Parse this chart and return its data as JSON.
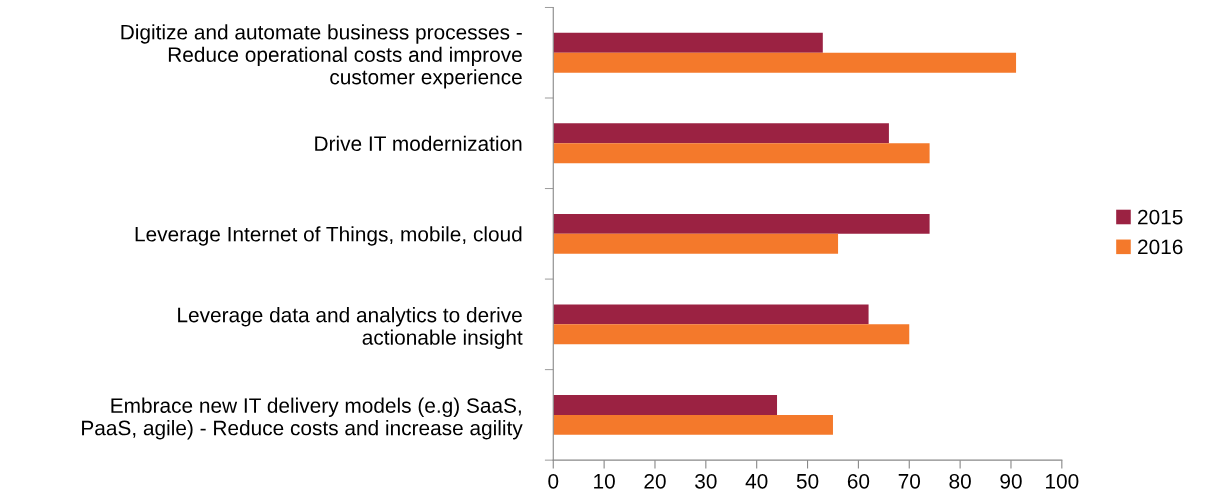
{
  "chart_data": {
    "type": "bar",
    "orientation": "horizontal",
    "categories": [
      "Digitize and automate business processes -\nReduce operational costs and improve\ncustomer experience",
      "Drive IT modernization",
      "Leverage Internet of Things, mobile, cloud",
      "Leverage data and analytics to derive\nactionable insight",
      "Embrace new IT delivery models (e.g) SaaS,\nPaaS, agile) - Reduce costs and increase agility"
    ],
    "series": [
      {
        "name": "2015",
        "color": "#9b2242",
        "values": [
          53,
          66,
          74,
          62,
          44
        ]
      },
      {
        "name": "2016",
        "color": "#f4792b",
        "values": [
          91,
          74,
          56,
          70,
          55
        ]
      }
    ],
    "xlim": [
      0,
      100
    ],
    "xticks": [
      0,
      10,
      20,
      30,
      40,
      50,
      60,
      70,
      80,
      90,
      100
    ],
    "grid": false,
    "legend": "right"
  }
}
